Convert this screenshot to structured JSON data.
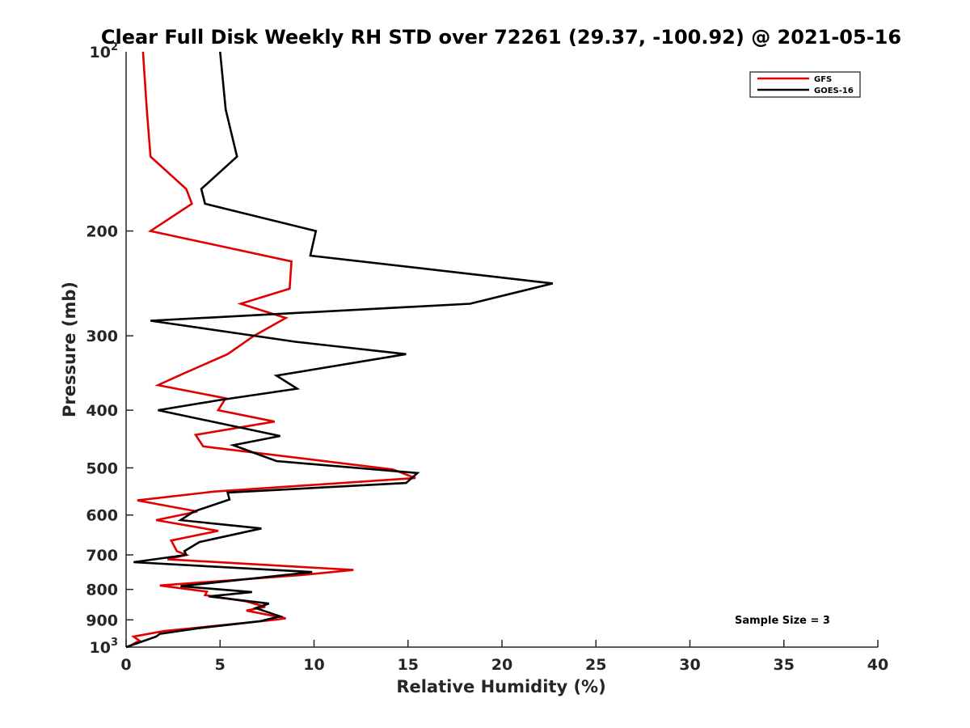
{
  "chart_data": {
    "type": "line",
    "title": "Clear Full Disk Weekly RH STD over 72261 (29.37, -100.92) @ 2021-05-16",
    "xlabel": "Relative Humidity (%)",
    "ylabel": "Pressure (mb)",
    "xlim": [
      0,
      40
    ],
    "ylim": [
      100,
      1000
    ],
    "y_scale": "log",
    "y_reversed": true,
    "grid": false,
    "legend_position": "top-right",
    "x_ticks": [
      0,
      5,
      10,
      15,
      20,
      25,
      30,
      35,
      40
    ],
    "x_tick_labels": [
      "0",
      "5",
      "10",
      "15",
      "20",
      "25",
      "30",
      "35",
      "40"
    ],
    "y_ticks": [
      200,
      300,
      400,
      500,
      600,
      700,
      800,
      900
    ],
    "y_tick_labels": [
      "200",
      "300",
      "400",
      "500",
      "600",
      "700",
      "800",
      "900"
    ],
    "y_tick_top": {
      "base": "10",
      "exp": "2"
    },
    "y_tick_bottom": {
      "base": "10",
      "exp": "3"
    },
    "annotation": "Sample Size = 3",
    "series": [
      {
        "name": "GFS",
        "color": "#e00000",
        "points": [
          [
            0.9,
            100
          ],
          [
            1.1,
            125
          ],
          [
            1.3,
            150
          ],
          [
            3.2,
            170
          ],
          [
            3.5,
            180
          ],
          [
            1.3,
            200
          ],
          [
            8.8,
            225
          ],
          [
            8.7,
            250
          ],
          [
            6.1,
            265
          ],
          [
            8.5,
            280
          ],
          [
            6.8,
            300
          ],
          [
            5.4,
            322
          ],
          [
            2.8,
            350
          ],
          [
            1.7,
            363
          ],
          [
            5.3,
            382
          ],
          [
            4.9,
            400
          ],
          [
            7.9,
            418
          ],
          [
            3.7,
            440
          ],
          [
            4.1,
            460
          ],
          [
            14.2,
            503
          ],
          [
            15.4,
            520
          ],
          [
            4.7,
            548
          ],
          [
            0.6,
            567
          ],
          [
            3.8,
            592
          ],
          [
            1.6,
            612
          ],
          [
            4.9,
            638
          ],
          [
            2.4,
            662
          ],
          [
            2.7,
            690
          ],
          [
            3.2,
            700
          ],
          [
            2.2,
            712
          ],
          [
            12.1,
            742
          ],
          [
            9.3,
            757
          ],
          [
            1.8,
            788
          ],
          [
            4.3,
            807
          ],
          [
            4.2,
            818
          ],
          [
            6.4,
            838
          ],
          [
            7.4,
            856
          ],
          [
            6.4,
            868
          ],
          [
            8.5,
            895
          ],
          [
            7.6,
            902
          ],
          [
            2.0,
            940
          ],
          [
            0.4,
            960
          ],
          [
            0.7,
            975
          ],
          [
            0.1,
            1000
          ]
        ]
      },
      {
        "name": "GOES-16",
        "color": "#000000",
        "points": [
          [
            5.0,
            100
          ],
          [
            5.3,
            125
          ],
          [
            5.9,
            150
          ],
          [
            4.0,
            170
          ],
          [
            4.2,
            180
          ],
          [
            10.1,
            200
          ],
          [
            9.8,
            220
          ],
          [
            22.7,
            245
          ],
          [
            18.3,
            265
          ],
          [
            1.3,
            283
          ],
          [
            9.0,
            307
          ],
          [
            14.9,
            322
          ],
          [
            8.0,
            350
          ],
          [
            9.1,
            368
          ],
          [
            4.9,
            385
          ],
          [
            1.7,
            400
          ],
          [
            8.2,
            442
          ],
          [
            5.7,
            458
          ],
          [
            8.0,
            487
          ],
          [
            15.5,
            510
          ],
          [
            14.9,
            530
          ],
          [
            5.4,
            550
          ],
          [
            5.5,
            565
          ],
          [
            3.6,
            592
          ],
          [
            2.9,
            612
          ],
          [
            7.2,
            632
          ],
          [
            3.9,
            666
          ],
          [
            3.1,
            690
          ],
          [
            3.2,
            700
          ],
          [
            0.4,
            720
          ],
          [
            9.9,
            748
          ],
          [
            2.9,
            790
          ],
          [
            6.7,
            808
          ],
          [
            4.4,
            822
          ],
          [
            7.6,
            845
          ],
          [
            6.9,
            860
          ],
          [
            8.2,
            888
          ],
          [
            7.1,
            905
          ],
          [
            3.8,
            930
          ],
          [
            1.8,
            950
          ],
          [
            1.6,
            960
          ],
          [
            0.0,
            1000
          ]
        ]
      }
    ]
  }
}
